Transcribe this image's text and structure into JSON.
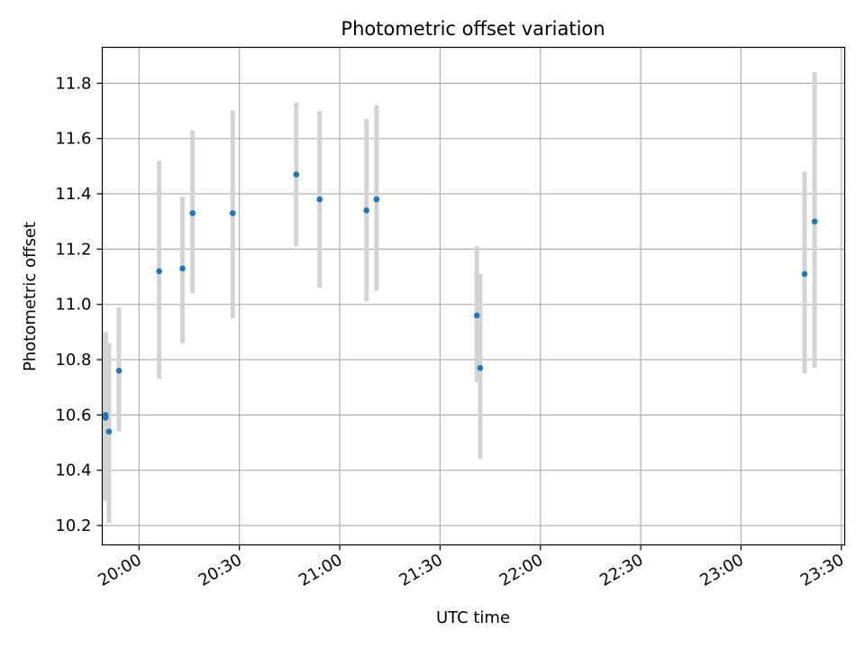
{
  "chart_data": {
    "type": "scatter",
    "title": "Photometric offset variation",
    "xlabel": "UTC time",
    "ylabel": "Photometric offset",
    "x_tick_labels": [
      "20:00",
      "20:30",
      "21:00",
      "21:30",
      "22:00",
      "22:30",
      "23:00",
      "23:30"
    ],
    "y_tick_labels": [
      "10.2",
      "10.4",
      "10.6",
      "10.8",
      "11.0",
      "11.2",
      "11.4",
      "11.6",
      "11.8"
    ],
    "xlim": [
      "19:49",
      "23:31"
    ],
    "ylim": [
      10.13,
      11.93
    ],
    "grid": true,
    "points": [
      {
        "time": "19:50",
        "value": 10.59,
        "err_low": 10.29,
        "err_high": 10.9
      },
      {
        "time": "19:50",
        "value": 10.6,
        "err_low": 10.29,
        "err_high": 10.9
      },
      {
        "time": "19:51",
        "value": 10.54,
        "err_low": 10.21,
        "err_high": 10.86
      },
      {
        "time": "19:54",
        "value": 10.76,
        "err_low": 10.54,
        "err_high": 10.99
      },
      {
        "time": "20:06",
        "value": 11.12,
        "err_low": 10.73,
        "err_high": 11.52
      },
      {
        "time": "20:13",
        "value": 11.13,
        "err_low": 10.86,
        "err_high": 11.39
      },
      {
        "time": "20:16",
        "value": 11.33,
        "err_low": 11.04,
        "err_high": 11.63
      },
      {
        "time": "20:28",
        "value": 11.33,
        "err_low": 10.95,
        "err_high": 11.7
      },
      {
        "time": "20:47",
        "value": 11.47,
        "err_low": 11.21,
        "err_high": 11.73
      },
      {
        "time": "20:54",
        "value": 11.38,
        "err_low": 11.06,
        "err_high": 11.7
      },
      {
        "time": "21:08",
        "value": 11.34,
        "err_low": 11.01,
        "err_high": 11.67
      },
      {
        "time": "21:11",
        "value": 11.38,
        "err_low": 11.05,
        "err_high": 11.72
      },
      {
        "time": "21:41",
        "value": 10.96,
        "err_low": 10.72,
        "err_high": 11.21
      },
      {
        "time": "21:42",
        "value": 10.77,
        "err_low": 10.44,
        "err_high": 11.11
      },
      {
        "time": "23:19",
        "value": 11.11,
        "err_low": 10.75,
        "err_high": 11.48
      },
      {
        "time": "23:22",
        "value": 11.3,
        "err_low": 10.77,
        "err_high": 11.84
      }
    ],
    "colors": {
      "marker": "#1f77b4",
      "errorbar": "#d3d3d3",
      "grid": "#b0b0b0",
      "axes": "#000000"
    }
  }
}
